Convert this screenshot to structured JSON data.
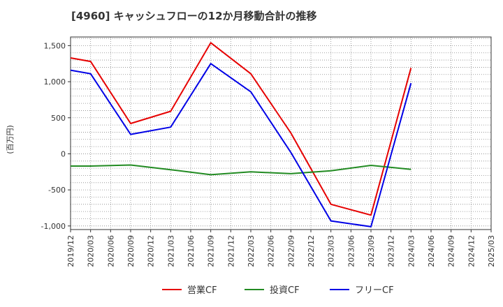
{
  "chart_data": {
    "type": "line",
    "title": "[4960]  キャッシュフローの12か月移動合計の推移",
    "ylabel": "(百万円)",
    "xlabel": "",
    "ylim": [
      -1050,
      1620
    ],
    "yticks": [
      -1000,
      -500,
      0,
      500,
      1000,
      1500
    ],
    "ytick_labels": [
      "-1,000",
      "-500",
      "0",
      "500",
      "1,000",
      "1,500"
    ],
    "categories": [
      "2019/12",
      "2020/03",
      "2020/06",
      "2020/09",
      "2020/12",
      "2021/03",
      "2021/06",
      "2021/09",
      "2021/12",
      "2022/03",
      "2022/06",
      "2022/09",
      "2022/12",
      "2023/03",
      "2023/06",
      "2023/09",
      "2023/12",
      "2024/03",
      "2024/06",
      "2024/09",
      "2024/12",
      "2025/03"
    ],
    "grid": true,
    "legend_position": "bottom",
    "series": [
      {
        "name": "営業CF",
        "color": "#e60000",
        "values": [
          1330,
          1280,
          null,
          420,
          null,
          590,
          null,
          1540,
          null,
          1110,
          null,
          290,
          null,
          -700,
          null,
          -850,
          null,
          1190,
          null,
          null,
          null,
          null
        ]
      },
      {
        "name": "投資CF",
        "color": "#228B22",
        "values": [
          -170,
          -170,
          null,
          -155,
          null,
          -220,
          null,
          -290,
          null,
          -250,
          null,
          -275,
          null,
          -235,
          null,
          -160,
          null,
          -215,
          null,
          null,
          null,
          null
        ]
      },
      {
        "name": "フリーCF",
        "color": "#0000e6",
        "values": [
          1160,
          1110,
          null,
          270,
          null,
          370,
          null,
          1250,
          null,
          860,
          null,
          20,
          null,
          -930,
          null,
          -1010,
          null,
          980,
          null,
          null,
          null,
          null
        ]
      }
    ]
  }
}
